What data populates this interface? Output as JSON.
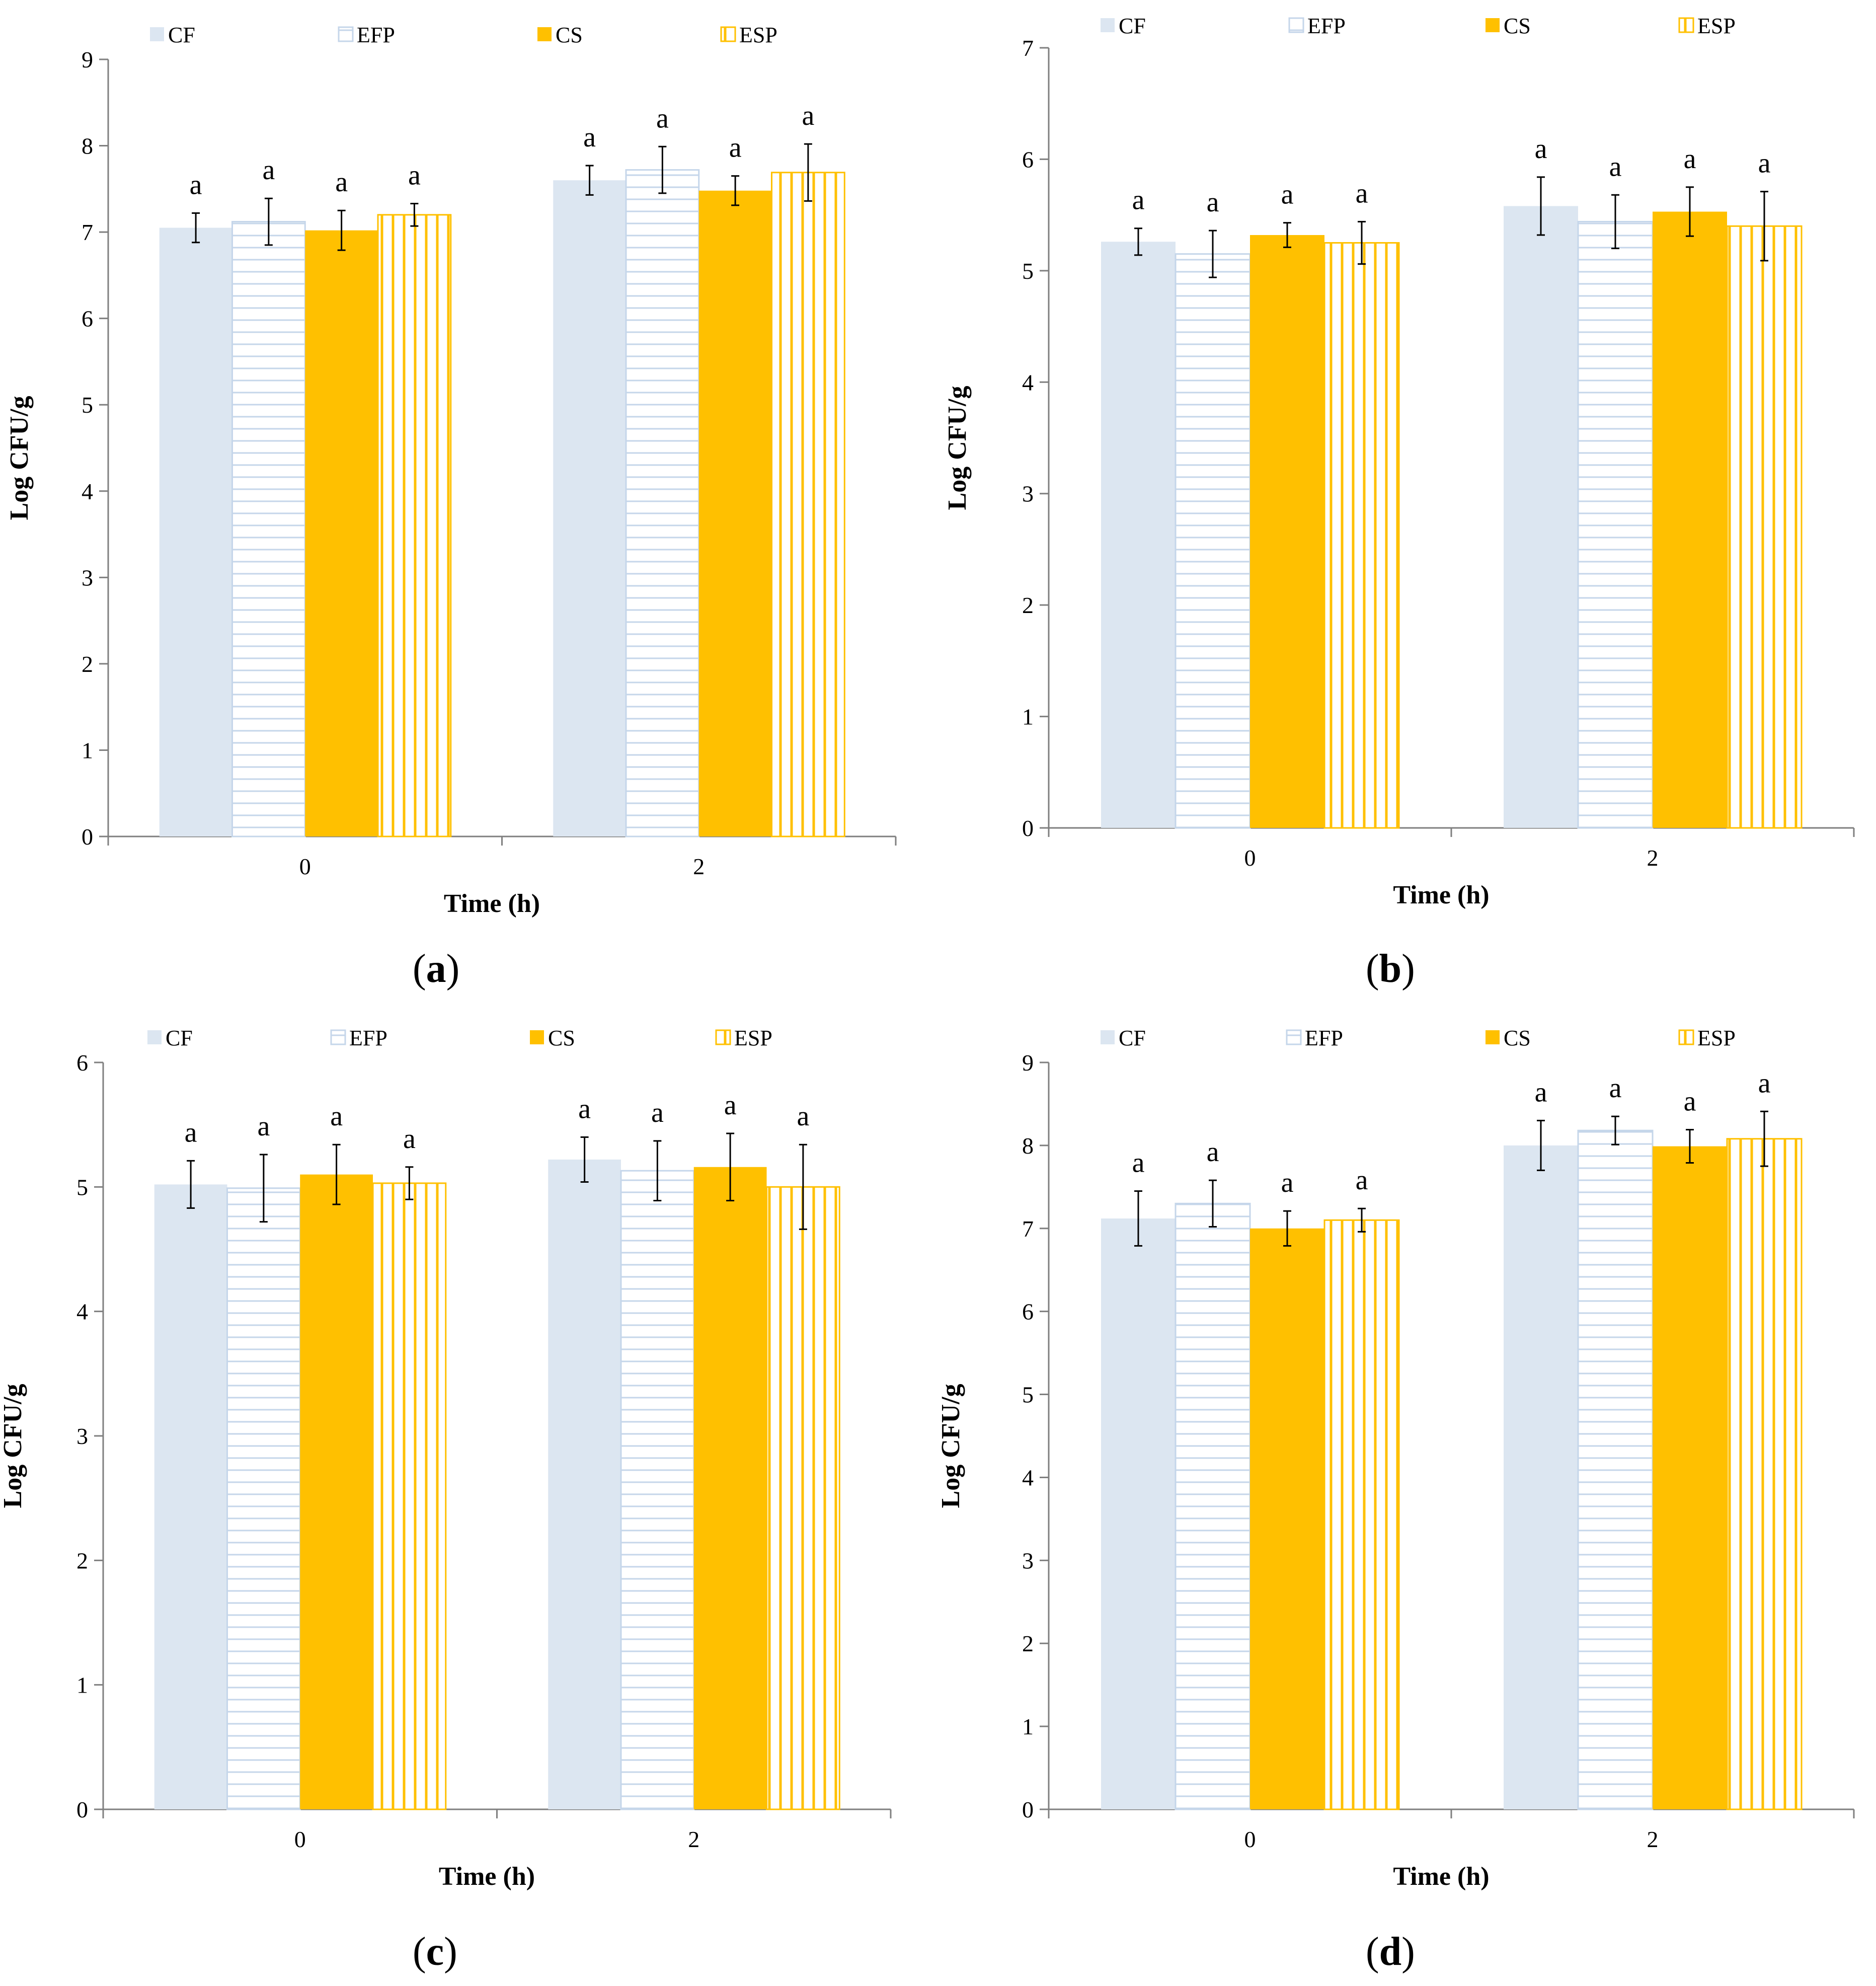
{
  "colors": {
    "CF": "#dce6f1",
    "EFP_line": "#c5d6ea",
    "CS": "#ffc000",
    "ESP_line": "#ffc000",
    "axis": "#7f7f7f",
    "error": "#000000"
  },
  "chart_data": [
    {
      "type": "bar",
      "panel": "a",
      "panel_label": "a",
      "categories": [
        "0",
        "2"
      ],
      "xlabel": "Time (h)",
      "ylabel": "Log CFU/g",
      "ylim": [
        0,
        9
      ],
      "yticks": [
        "0",
        "1",
        "2",
        "3",
        "4",
        "5",
        "6",
        "7",
        "8",
        "9"
      ],
      "legend": [
        "CF",
        "EFP",
        "CS",
        "ESP"
      ],
      "series": [
        {
          "name": "CF",
          "values": [
            7.05,
            7.6
          ],
          "errors": [
            0.17,
            0.17
          ],
          "labels": [
            "a",
            "a"
          ]
        },
        {
          "name": "EFP",
          "values": [
            7.12,
            7.72
          ],
          "errors": [
            0.27,
            0.27
          ],
          "labels": [
            "a",
            "a"
          ]
        },
        {
          "name": "CS",
          "values": [
            7.02,
            7.48
          ],
          "errors": [
            0.23,
            0.17
          ],
          "labels": [
            "a",
            "a"
          ]
        },
        {
          "name": "ESP",
          "values": [
            7.2,
            7.69
          ],
          "errors": [
            0.13,
            0.33
          ],
          "labels": [
            "a",
            "a"
          ]
        }
      ]
    },
    {
      "type": "bar",
      "panel": "b",
      "panel_label": "b",
      "categories": [
        "0",
        "2"
      ],
      "xlabel": "Time (h)",
      "ylabel": "Log CFU/g",
      "ylim": [
        0,
        7
      ],
      "yticks": [
        "0",
        "1",
        "2",
        "3",
        "4",
        "5",
        "6",
        "7"
      ],
      "legend": [
        "CF",
        "EFP",
        "CS",
        "ESP"
      ],
      "series": [
        {
          "name": "CF",
          "values": [
            5.26,
            5.58
          ],
          "errors": [
            0.12,
            0.26
          ],
          "labels": [
            "a",
            "a"
          ]
        },
        {
          "name": "EFP",
          "values": [
            5.15,
            5.44
          ],
          "errors": [
            0.21,
            0.24
          ],
          "labels": [
            "a",
            "a"
          ]
        },
        {
          "name": "CS",
          "values": [
            5.32,
            5.53
          ],
          "errors": [
            0.11,
            0.22
          ],
          "labels": [
            "a",
            "a"
          ]
        },
        {
          "name": "ESP",
          "values": [
            5.25,
            5.4
          ],
          "errors": [
            0.19,
            0.31
          ],
          "labels": [
            "a",
            "a"
          ]
        }
      ]
    },
    {
      "type": "bar",
      "panel": "c",
      "panel_label": "c",
      "categories": [
        "0",
        "2"
      ],
      "xlabel": "Time (h)",
      "ylabel": "Log CFU/g",
      "ylim": [
        0,
        6
      ],
      "yticks": [
        "0",
        "1",
        "2",
        "3",
        "4",
        "5",
        "6"
      ],
      "legend": [
        "CF",
        "EFP",
        "CS",
        "ESP"
      ],
      "series": [
        {
          "name": "CF",
          "values": [
            5.02,
            5.22
          ],
          "errors": [
            0.19,
            0.18
          ],
          "labels": [
            "a",
            "a"
          ]
        },
        {
          "name": "EFP",
          "values": [
            4.99,
            5.13
          ],
          "errors": [
            0.27,
            0.24
          ],
          "labels": [
            "a",
            "a"
          ]
        },
        {
          "name": "CS",
          "values": [
            5.1,
            5.16
          ],
          "errors": [
            0.24,
            0.27
          ],
          "labels": [
            "a",
            "a"
          ]
        },
        {
          "name": "ESP",
          "values": [
            5.03,
            5.0
          ],
          "errors": [
            0.13,
            0.34
          ],
          "labels": [
            "a",
            "a"
          ]
        }
      ]
    },
    {
      "type": "bar",
      "panel": "d",
      "panel_label": "d",
      "categories": [
        "0",
        "2"
      ],
      "xlabel": "Time (h)",
      "ylabel": "Log CFU/g",
      "ylim": [
        0,
        9
      ],
      "yticks": [
        "0",
        "1",
        "2",
        "3",
        "4",
        "5",
        "6",
        "7",
        "8",
        "9"
      ],
      "legend": [
        "CF",
        "EFP",
        "CS",
        "ESP"
      ],
      "series": [
        {
          "name": "CF",
          "values": [
            7.12,
            8.0
          ],
          "errors": [
            0.33,
            0.3
          ],
          "labels": [
            "a",
            "a"
          ]
        },
        {
          "name": "EFP",
          "values": [
            7.3,
            8.18
          ],
          "errors": [
            0.28,
            0.17
          ],
          "labels": [
            "a",
            "a"
          ]
        },
        {
          "name": "CS",
          "values": [
            7.0,
            7.99
          ],
          "errors": [
            0.21,
            0.2
          ],
          "labels": [
            "a",
            "a"
          ]
        },
        {
          "name": "ESP",
          "values": [
            7.1,
            8.08
          ],
          "errors": [
            0.14,
            0.33
          ],
          "labels": [
            "a",
            "a"
          ]
        }
      ]
    }
  ]
}
